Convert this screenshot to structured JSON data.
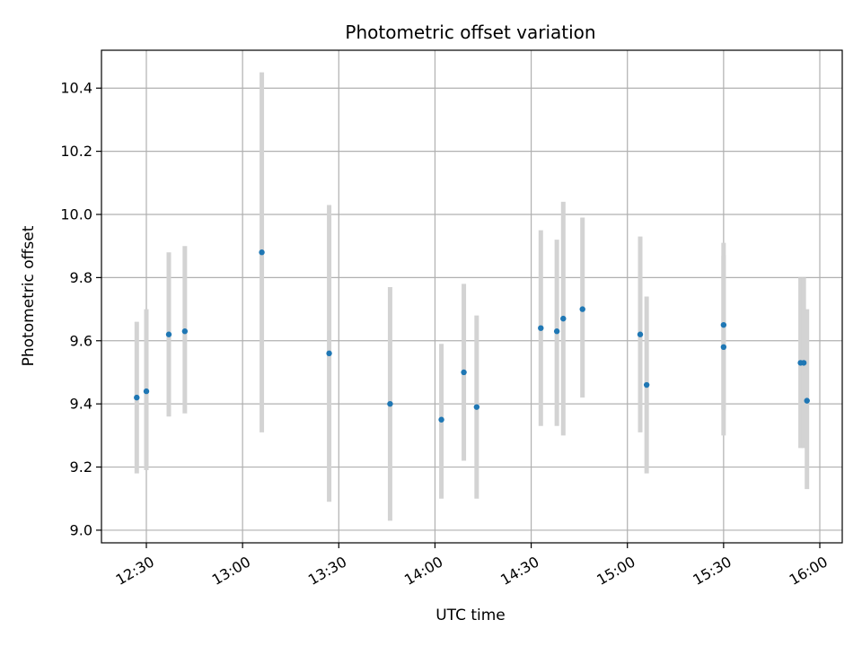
{
  "chart_data": {
    "type": "scatter",
    "title": "Photometric offset variation",
    "xlabel": "UTC time",
    "ylabel": "Photometric offset",
    "x_ticks": [
      "12:30",
      "13:00",
      "13:30",
      "14:00",
      "14:30",
      "15:00",
      "15:30",
      "16:00"
    ],
    "y_ticks": [
      "9.0",
      "9.2",
      "9.4",
      "9.6",
      "9.8",
      "10.0",
      "10.2",
      "10.4"
    ],
    "xlim": [
      "12:16",
      "16:07"
    ],
    "ylim": [
      8.96,
      10.52
    ],
    "grid": true,
    "point_color": "#1f77b4",
    "errorbar_color": "#d3d3d3",
    "points": [
      {
        "time": "12:27",
        "y": 9.42,
        "ylo": 9.18,
        "yhi": 9.66
      },
      {
        "time": "12:30",
        "y": 9.44,
        "ylo": 9.19,
        "yhi": 9.7
      },
      {
        "time": "12:37",
        "y": 9.62,
        "ylo": 9.36,
        "yhi": 9.88
      },
      {
        "time": "12:42",
        "y": 9.63,
        "ylo": 9.37,
        "yhi": 9.9
      },
      {
        "time": "13:06",
        "y": 9.88,
        "ylo": 9.31,
        "yhi": 10.45
      },
      {
        "time": "13:27",
        "y": 9.56,
        "ylo": 9.09,
        "yhi": 10.03
      },
      {
        "time": "13:46",
        "y": 9.4,
        "ylo": 9.03,
        "yhi": 9.77
      },
      {
        "time": "14:02",
        "y": 9.35,
        "ylo": 9.1,
        "yhi": 9.59
      },
      {
        "time": "14:09",
        "y": 9.5,
        "ylo": 9.22,
        "yhi": 9.78
      },
      {
        "time": "14:13",
        "y": 9.39,
        "ylo": 9.1,
        "yhi": 9.68
      },
      {
        "time": "14:33",
        "y": 9.64,
        "ylo": 9.33,
        "yhi": 9.95
      },
      {
        "time": "14:38",
        "y": 9.63,
        "ylo": 9.33,
        "yhi": 9.92
      },
      {
        "time": "14:40",
        "y": 9.67,
        "ylo": 9.3,
        "yhi": 10.04
      },
      {
        "time": "14:46",
        "y": 9.7,
        "ylo": 9.42,
        "yhi": 9.99
      },
      {
        "time": "15:04",
        "y": 9.62,
        "ylo": 9.31,
        "yhi": 9.93
      },
      {
        "time": "15:06",
        "y": 9.46,
        "ylo": 9.18,
        "yhi": 9.74
      },
      {
        "time": "15:30",
        "y": 9.65,
        "ylo": 9.38,
        "yhi": 9.91
      },
      {
        "time": "15:30",
        "y": 9.58,
        "ylo": 9.3,
        "yhi": 9.87
      },
      {
        "time": "15:54",
        "y": 9.53,
        "ylo": 9.26,
        "yhi": 9.8
      },
      {
        "time": "15:55",
        "y": 9.53,
        "ylo": 9.26,
        "yhi": 9.8
      },
      {
        "time": "15:56",
        "y": 9.41,
        "ylo": 9.13,
        "yhi": 9.7
      }
    ]
  }
}
